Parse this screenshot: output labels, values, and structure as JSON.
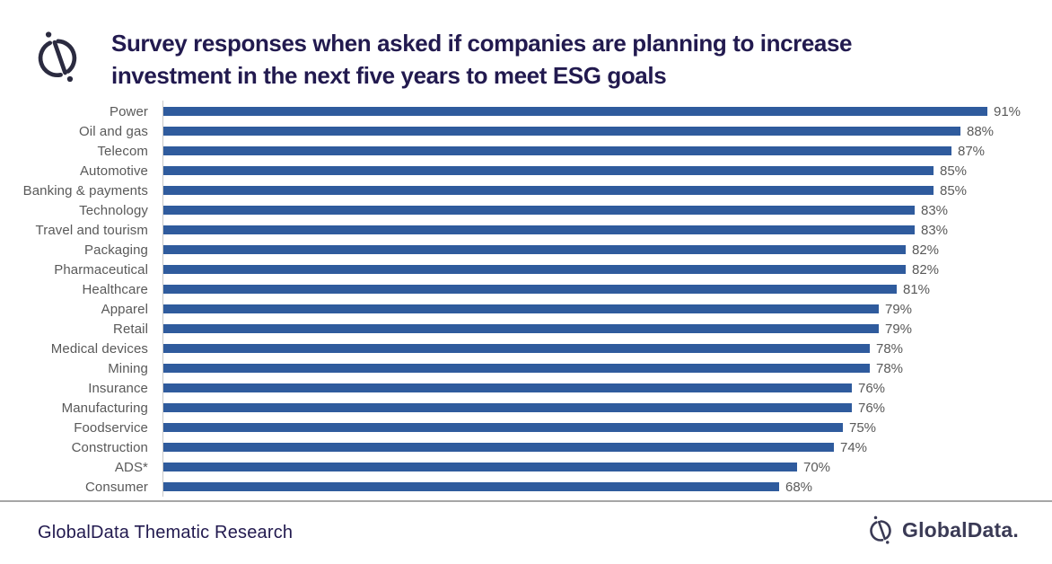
{
  "header": {
    "title_lines": [
      "Survey responses when asked if companies are planning to increase",
      "investment in the next five years to meet ESG goals"
    ]
  },
  "chart_data": {
    "type": "bar",
    "orientation": "horizontal",
    "title": "Survey responses when asked if companies are planning to increase investment in the next five years to meet ESG goals",
    "categories": [
      "Power",
      "Oil and gas",
      "Telecom",
      "Automotive",
      "Banking & payments",
      "Technology",
      "Travel and tourism",
      "Packaging",
      "Pharmaceutical",
      "Healthcare",
      "Apparel",
      "Retail",
      "Medical devices",
      "Mining",
      "Insurance",
      "Manufacturing",
      "Foodservice",
      "Construction",
      "ADS*",
      "Consumer"
    ],
    "values": [
      91,
      88,
      87,
      85,
      85,
      83,
      83,
      82,
      82,
      81,
      79,
      79,
      78,
      78,
      76,
      76,
      75,
      74,
      70,
      68
    ],
    "value_suffix": "%",
    "data_labels": "outside-end",
    "xlabel": "",
    "ylabel": "",
    "xlim": [
      0,
      100
    ],
    "grid": false,
    "legend": false,
    "bar_color": "#2F5B9D",
    "label_color": "#595959",
    "axis_line_color": "#C9C9C9"
  },
  "footer": {
    "source_text": "GlobalData Thematic Research",
    "brand_text": "GlobalData.",
    "brand_color": "#3A3A55",
    "divider_color": "#A6A6A6"
  },
  "colors": {
    "title": "#221A4F",
    "bar": "#2F5B9D",
    "label_gray": "#595959"
  }
}
